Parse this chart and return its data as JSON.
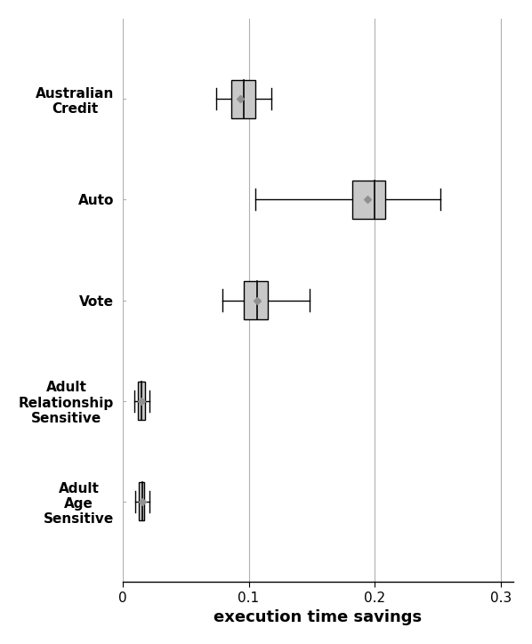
{
  "categories": [
    "Australian\nCredit",
    "Auto",
    "Vote",
    "Adult\nRelationship\nSensitive",
    "Adult\nAge\nSensitive"
  ],
  "boxes": [
    {
      "q1": 0.086,
      "median": 0.096,
      "q3": 0.105,
      "whisker_low": 0.074,
      "whisker_high": 0.118,
      "mean": 0.093
    },
    {
      "q1": 0.182,
      "median": 0.2,
      "q3": 0.208,
      "whisker_low": 0.105,
      "whisker_high": 0.252,
      "mean": 0.194
    },
    {
      "q1": 0.096,
      "median": 0.107,
      "q3": 0.115,
      "whisker_low": 0.079,
      "whisker_high": 0.148,
      "mean": 0.107
    },
    {
      "q1": 0.012,
      "median": 0.015,
      "q3": 0.018,
      "whisker_low": 0.009,
      "whisker_high": 0.021,
      "mean": 0.015
    },
    {
      "q1": 0.013,
      "median": 0.016,
      "q3": 0.017,
      "whisker_low": 0.01,
      "whisker_high": 0.021,
      "mean": 0.016
    }
  ],
  "xlabel": "execution time savings",
  "xlim": [
    0.0,
    0.31
  ],
  "xticks": [
    0,
    0.1,
    0.2,
    0.3
  ],
  "box_color": "#c8c8c8",
  "box_edge_color": "#000000",
  "median_color": "#000000",
  "whisker_color": "#000000",
  "mean_color": "#909090",
  "gridline_color": "#b0b0b0",
  "gridline_x": [
    0.1,
    0.2,
    0.3
  ],
  "figsize": [
    5.98,
    7.24
  ],
  "dpi": 100
}
